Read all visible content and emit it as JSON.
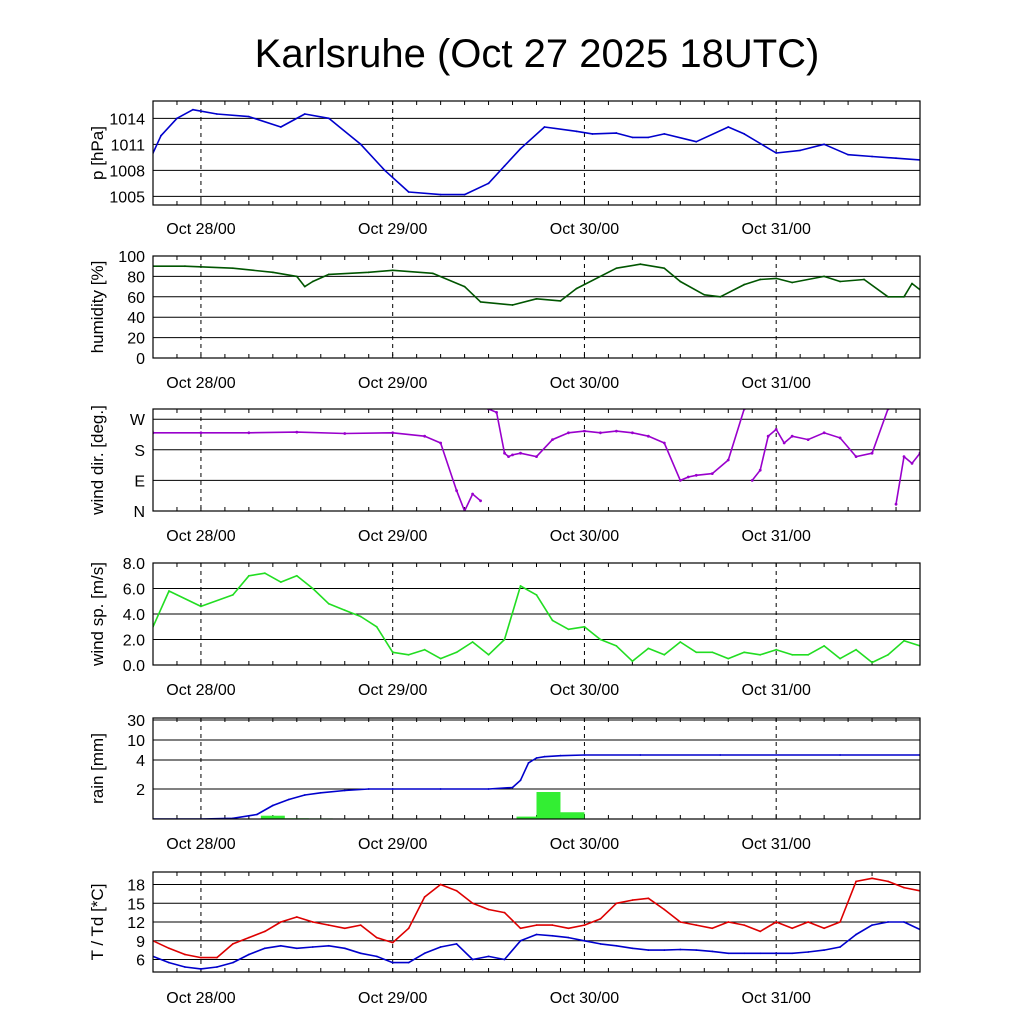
{
  "title": "Karlsruhe (Oct 27 2025 18UTC)",
  "x_tick_labels": [
    "Oct 28/00",
    "Oct 29/00",
    "Oct 30/00",
    "Oct 31/00"
  ],
  "colors": {
    "pressure": "#0000cc",
    "humidity": "#005500",
    "wind_dir": "#9900cc",
    "wind_speed": "#22dd22",
    "rain_bar": "#33ee33",
    "rain_line": "#0000cc",
    "temperature": "#dd0000",
    "dewpoint": "#0000cc"
  },
  "chart_data": [
    {
      "type": "line",
      "name": "pressure",
      "ylabel": "p [hPa]",
      "xlim": [
        -6,
        90
      ],
      "ylim": [
        1004,
        1016
      ],
      "yticks": [
        1005,
        1008,
        1011,
        1014
      ],
      "x": [
        -6,
        -5,
        -3,
        -1,
        2,
        6,
        10,
        13,
        16,
        20,
        23,
        26,
        30,
        33,
        36,
        38,
        40,
        43,
        47,
        49,
        52,
        54,
        56,
        58,
        62,
        66,
        68,
        72,
        75,
        78,
        81,
        84,
        87,
        90
      ],
      "values": [
        1010.0,
        1012.0,
        1014.0,
        1015.0,
        1014.5,
        1014.2,
        1013.0,
        1014.5,
        1014.0,
        1011.0,
        1008.0,
        1005.5,
        1005.2,
        1005.2,
        1006.5,
        1008.5,
        1010.5,
        1013.0,
        1012.5,
        1012.2,
        1012.3,
        1011.8,
        1011.8,
        1012.2,
        1011.3,
        1013.0,
        1012.2,
        1010.0,
        1010.3,
        1011.0,
        1009.8,
        1009.6,
        1009.4,
        1009.2
      ]
    },
    {
      "type": "line",
      "name": "humidity",
      "ylabel": "humidity [%]",
      "xlim": [
        -6,
        90
      ],
      "ylim": [
        0,
        100
      ],
      "yticks": [
        0,
        20,
        40,
        60,
        80,
        100
      ],
      "x": [
        -6,
        -2,
        4,
        9,
        12,
        13,
        14,
        16,
        21,
        24,
        29,
        33,
        35,
        39,
        42,
        45,
        47,
        52,
        55,
        58,
        60,
        63,
        65,
        68,
        70,
        72,
        74,
        78,
        80,
        83,
        86,
        88,
        89,
        90
      ],
      "values": [
        90,
        90,
        88,
        84,
        80,
        70,
        75,
        82,
        84,
        86,
        83,
        70,
        55,
        52,
        58,
        56,
        68,
        88,
        92,
        88,
        75,
        62,
        60,
        72,
        77,
        78,
        74,
        80,
        75,
        77,
        60,
        60,
        73,
        67
      ]
    },
    {
      "type": "scatter",
      "name": "wind direction",
      "ylabel": "wind dir. [deg.]",
      "xlim": [
        -6,
        90
      ],
      "ylim": [
        0,
        300
      ],
      "yticks": [
        0,
        90,
        180,
        270
      ],
      "ytick_labels": [
        "N",
        "E",
        "S",
        "W"
      ],
      "x": [
        -6,
        0,
        6,
        12,
        18,
        24,
        28,
        30,
        32,
        33,
        34,
        35,
        36,
        37,
        38,
        38.5,
        39,
        40,
        42,
        44,
        46,
        48,
        50,
        52,
        54,
        56,
        58,
        60,
        61,
        62,
        64,
        66,
        68,
        69,
        70,
        71,
        72,
        73,
        74,
        76,
        78,
        80,
        82,
        84,
        86,
        87,
        88,
        89,
        90
      ],
      "values": [
        230,
        230,
        230,
        232,
        228,
        230,
        220,
        200,
        60,
        0,
        50,
        30,
        300,
        290,
        170,
        160,
        165,
        170,
        160,
        210,
        230,
        235,
        230,
        235,
        230,
        220,
        200,
        90,
        100,
        105,
        110,
        150,
        300,
        90,
        120,
        220,
        240,
        200,
        220,
        210,
        230,
        215,
        160,
        170,
        300,
        20,
        160,
        140,
        170
      ]
    },
    {
      "type": "line",
      "name": "wind speed",
      "ylabel": "wind sp. [m/s]",
      "xlim": [
        -6,
        90
      ],
      "ylim": [
        0,
        8
      ],
      "yticks": [
        0.0,
        2.0,
        4.0,
        6.0,
        8.0
      ],
      "ytick_labels": [
        "0.0",
        "2.0",
        "4.0",
        "6.0",
        "8.0"
      ],
      "x": [
        -6,
        -4,
        0,
        4,
        6,
        8,
        10,
        12,
        14,
        16,
        18,
        20,
        22,
        24,
        26,
        28,
        30,
        32,
        34,
        36,
        38,
        40,
        42,
        44,
        46,
        48,
        50,
        52,
        54,
        56,
        58,
        60,
        62,
        64,
        66,
        68,
        70,
        72,
        74,
        76,
        78,
        80,
        82,
        84,
        86,
        88,
        90
      ],
      "values": [
        3.0,
        5.8,
        4.6,
        5.5,
        7.0,
        7.2,
        6.5,
        7.0,
        6.0,
        4.8,
        4.3,
        3.8,
        3.0,
        1.0,
        0.8,
        1.2,
        0.5,
        1.0,
        1.8,
        0.8,
        2.0,
        6.2,
        5.5,
        3.5,
        2.8,
        3.0,
        2.0,
        1.5,
        0.3,
        1.3,
        0.8,
        1.8,
        1.0,
        1.0,
        0.5,
        1.0,
        0.8,
        1.2,
        0.8,
        0.8,
        1.5,
        0.5,
        1.2,
        0.2,
        0.8,
        1.9,
        1.5
      ]
    },
    {
      "type": "bar",
      "name": "rain",
      "ylabel": "rain [mm]",
      "xlim": [
        -6,
        90
      ],
      "ylim": [
        0,
        30
      ],
      "yticks": [
        2,
        4,
        10,
        30
      ],
      "bins": [
        {
          "x0": 7.5,
          "x1": 10.5,
          "value": 0.22
        },
        {
          "x0": 10.5,
          "x1": 13.5,
          "value": 0.05
        },
        {
          "x0": 13.5,
          "x1": 16.5,
          "value": 0.04
        },
        {
          "x0": 16.5,
          "x1": 22.5,
          "value": 0.01
        },
        {
          "x0": 39.5,
          "x1": 42.0,
          "value": 0.16
        },
        {
          "x0": 42.0,
          "x1": 45.0,
          "value": 1.8
        },
        {
          "x0": 45.0,
          "x1": 48.0,
          "value": 0.45
        }
      ],
      "cumulative": {
        "name": "accumulated rain",
        "x": [
          -6,
          0,
          4,
          7,
          9,
          11,
          13,
          15,
          18,
          21,
          24,
          30,
          36,
          39,
          40,
          41,
          42,
          43,
          45,
          48,
          55,
          65,
          80,
          90
        ],
        "values": [
          0,
          0,
          0.05,
          0.3,
          0.9,
          1.3,
          1.6,
          1.75,
          1.9,
          2.0,
          2.0,
          2.0,
          2.0,
          2.1,
          2.6,
          3.8,
          4.6,
          5.0,
          5.3,
          5.5,
          5.5,
          5.5,
          5.5,
          5.5
        ]
      }
    },
    {
      "type": "line",
      "name": "temperature and dewpoint",
      "ylabel": "T / Td [*C]",
      "xlim": [
        -6,
        90
      ],
      "ylim": [
        4,
        20
      ],
      "yticks": [
        6,
        9,
        12,
        15,
        18
      ],
      "x": [
        -6,
        -4,
        -2,
        0,
        2,
        4,
        6,
        8,
        10,
        12,
        14,
        16,
        18,
        20,
        22,
        24,
        26,
        28,
        30,
        32,
        34,
        36,
        38,
        40,
        42,
        44,
        46,
        48,
        50,
        52,
        54,
        56,
        58,
        60,
        62,
        64,
        66,
        68,
        70,
        72,
        74,
        76,
        78,
        80,
        82,
        84,
        86,
        88,
        90
      ],
      "series": [
        {
          "name": "T",
          "values": [
            9.0,
            7.8,
            6.8,
            6.3,
            6.3,
            8.5,
            9.5,
            10.5,
            12.0,
            12.8,
            12.0,
            11.5,
            11.0,
            11.5,
            9.5,
            8.7,
            11.0,
            16.0,
            18.0,
            17.0,
            15.0,
            14.0,
            13.5,
            11.0,
            11.5,
            11.5,
            11.0,
            11.5,
            12.5,
            15.0,
            15.5,
            15.8,
            14.0,
            12.0,
            11.5,
            11.0,
            12.0,
            11.5,
            10.5,
            12.0,
            11.0,
            12.0,
            11.0,
            12.0,
            18.5,
            19.0,
            18.5,
            17.5,
            17.0
          ]
        },
        {
          "name": "Td",
          "values": [
            6.5,
            5.5,
            4.8,
            4.5,
            4.8,
            5.5,
            6.8,
            7.8,
            8.2,
            7.8,
            8.0,
            8.2,
            7.8,
            7.0,
            6.5,
            5.5,
            5.5,
            7.0,
            8.0,
            8.5,
            6.0,
            6.5,
            6.0,
            9.0,
            10.0,
            9.8,
            9.5,
            9.0,
            8.5,
            8.2,
            7.8,
            7.5,
            7.5,
            7.6,
            7.5,
            7.3,
            7.0,
            7.0,
            7.0,
            7.0,
            7.0,
            7.2,
            7.5,
            8.0,
            10.0,
            11.5,
            12.0,
            12.0,
            10.8
          ]
        }
      ]
    }
  ]
}
